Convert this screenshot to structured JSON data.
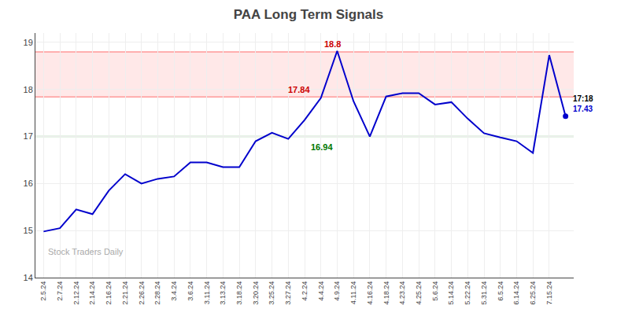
{
  "chart_data": {
    "type": "line",
    "title": "PAA Long Term Signals",
    "categories": [
      "2.5.24",
      "2.7.24",
      "2.12.24",
      "2.14.24",
      "2.16.24",
      "2.21.24",
      "2.26.24",
      "2.28.24",
      "3.4.24",
      "3.6.24",
      "3.11.24",
      "3.13.24",
      "3.18.24",
      "3.20.24",
      "3.25.24",
      "3.27.24",
      "4.2.24",
      "4.4.24",
      "4.9.24",
      "4.11.24",
      "4.16.24",
      "4.18.24",
      "4.23.24",
      "4.25.24",
      "5.6.24",
      "5.14.24",
      "5.22.24",
      "5.31.24",
      "6.5.24",
      "6.14.24",
      "6.25.24",
      "7.15.24",
      null
    ],
    "values": [
      14.98,
      15.05,
      15.45,
      15.35,
      15.85,
      16.2,
      16.0,
      16.1,
      16.15,
      16.45,
      16.45,
      16.35,
      16.35,
      16.9,
      17.08,
      16.95,
      17.35,
      17.82,
      18.82,
      17.75,
      17.0,
      17.85,
      17.92,
      17.92,
      17.68,
      17.73,
      17.38,
      17.07,
      16.98,
      16.9,
      16.65,
      18.73,
      17.43
    ],
    "color": "#0000cc",
    "ylim": [
      14.0,
      19.2
    ],
    "yticks": [
      14,
      15,
      16,
      17,
      18,
      19
    ],
    "grid": true,
    "band": {
      "from": 17.84,
      "to": 18.8,
      "color": "#ffcccc"
    },
    "hlines": [
      {
        "value": 18.8,
        "color": "#ff9999"
      },
      {
        "value": 17.84,
        "color": "#ff9999"
      },
      {
        "value": 17.0,
        "color": "#99cc99"
      }
    ],
    "annotations": [
      {
        "text": "18.8",
        "x": 18,
        "y": 18.8,
        "color": "#cc0000"
      },
      {
        "text": "17.84",
        "x": 17,
        "y": 17.84,
        "color": "#cc0000"
      },
      {
        "text": "16.94",
        "x": 16,
        "y": 16.94,
        "color": "#007700"
      },
      {
        "text": "17:18",
        "x": 32,
        "y": 17.43,
        "color": "#000000"
      },
      {
        "text": "17.43",
        "x": 32,
        "y": 17.43,
        "color": "#0000cc"
      }
    ],
    "watermark": "Stock Traders Daily"
  }
}
